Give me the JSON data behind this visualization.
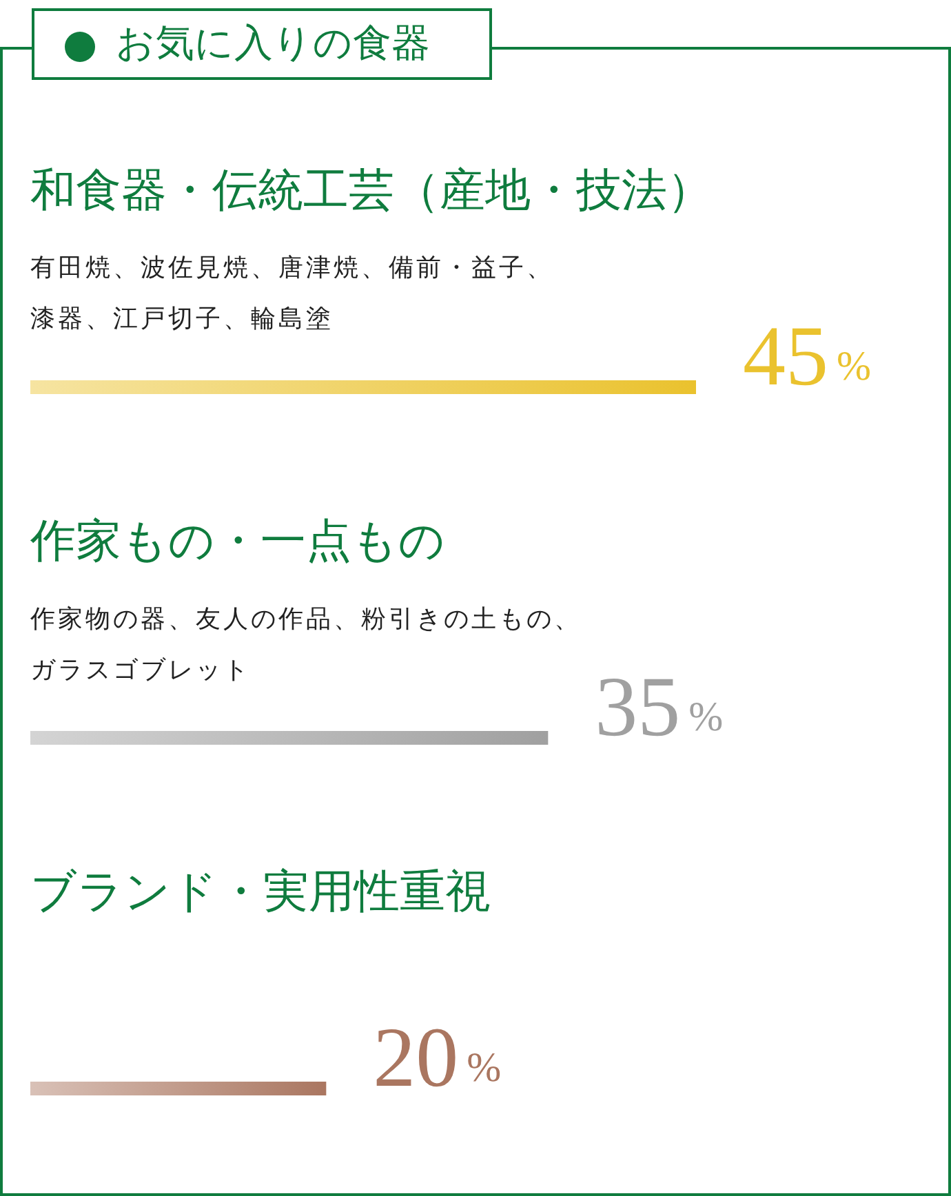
{
  "chart_data": {
    "type": "bar",
    "orientation": "horizontal",
    "title": "お気に入りの食器",
    "categories": [
      "和食器・伝統工芸（産地・技法）",
      "作家もの・一点もの",
      "ブランド・実用性重視"
    ],
    "values": [
      45,
      35,
      20
    ],
    "colors": [
      "#eac22e",
      "#a0a0a0",
      "#aa7660"
    ],
    "value_labels": [
      "45%",
      "35%",
      "20%"
    ],
    "annotations": [
      "有田焼、波佐見焼、唐津焼、備前・益子、漆器、江戸切子、輪島塗",
      "作家物の器、友人の作品、粉引きの土もの、ガラスゴブレット"
    ]
  }
}
